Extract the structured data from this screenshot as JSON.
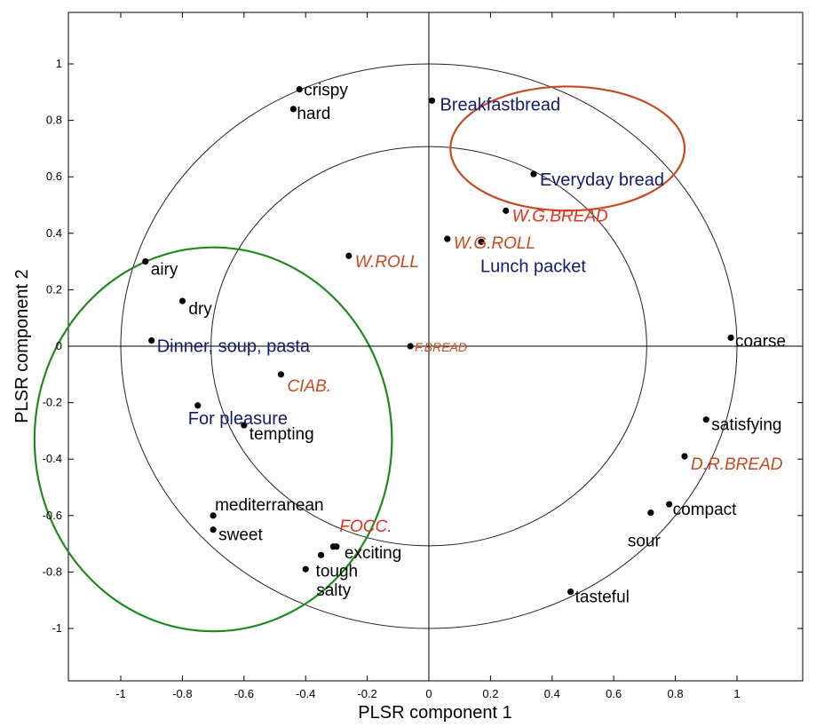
{
  "chart_data": {
    "type": "scatter",
    "title": "",
    "xlabel": "PLSR component 1",
    "ylabel": "PLSR component 2",
    "xlim": [
      -1.2,
      1.2
    ],
    "ylim": [
      -1.2,
      1.2
    ],
    "xticks": [
      "-1",
      "-0.8",
      "-0.6",
      "-0.4",
      "-0.2",
      "0",
      "0.2",
      "0.4",
      "0.6",
      "0.8",
      "1"
    ],
    "yticks": [
      "1",
      "0.8",
      "0.6",
      "0.4",
      "0.2",
      "0",
      "-0.2",
      "-0.4",
      "-0.6",
      "-0.8",
      "-1"
    ],
    "grid": false,
    "reference_circles_radius": [
      0.707,
      1.0
    ],
    "highlight_ellipses": [
      {
        "cx": 0.45,
        "cy": 0.7,
        "rx": 0.38,
        "ry": 0.22,
        "color": "#c8491f"
      },
      {
        "cx": -0.7,
        "cy": -0.33,
        "rx": 0.58,
        "ry": 0.68,
        "color": "#1e8a1e"
      }
    ],
    "points": [
      {
        "label": "crispy",
        "x": -0.42,
        "y": 0.91,
        "color": "#000000",
        "group": "attribute"
      },
      {
        "label": "hard",
        "x": -0.44,
        "y": 0.84,
        "color": "#000000",
        "group": "attribute"
      },
      {
        "label": "airy",
        "x": -0.92,
        "y": 0.3,
        "color": "#000000",
        "group": "attribute"
      },
      {
        "label": "dry",
        "x": -0.8,
        "y": 0.16,
        "color": "#000000",
        "group": "attribute"
      },
      {
        "label": "tempting",
        "x": -0.6,
        "y": -0.28,
        "color": "#000000",
        "group": "attribute"
      },
      {
        "label": "mediterranean",
        "x": -0.7,
        "y": -0.6,
        "color": "#000000",
        "group": "attribute"
      },
      {
        "label": "sweet",
        "x": -0.7,
        "y": -0.65,
        "color": "#000000",
        "group": "attribute"
      },
      {
        "label": "exciting",
        "x": -0.3,
        "y": -0.71,
        "color": "#000000",
        "group": "attribute"
      },
      {
        "label": "tough",
        "x": -0.35,
        "y": -0.74,
        "color": "#000000",
        "group": "attribute"
      },
      {
        "label": "salty",
        "x": -0.4,
        "y": -0.79,
        "color": "#000000",
        "group": "attribute"
      },
      {
        "label": "coarse",
        "x": 0.98,
        "y": 0.03,
        "color": "#000000",
        "group": "attribute"
      },
      {
        "label": "satisfying",
        "x": 0.9,
        "y": -0.26,
        "color": "#000000",
        "group": "attribute"
      },
      {
        "label": "compact",
        "x": 0.78,
        "y": -0.56,
        "color": "#000000",
        "group": "attribute"
      },
      {
        "label": "sour",
        "x": 0.72,
        "y": -0.59,
        "color": "#000000",
        "group": "attribute"
      },
      {
        "label": "tasteful",
        "x": 0.46,
        "y": -0.87,
        "color": "#000000",
        "group": "attribute"
      },
      {
        "label": "Breakfastbread",
        "x": 0.01,
        "y": 0.87,
        "color": "#141a6e",
        "group": "occasion"
      },
      {
        "label": "Everyday bread",
        "x": 0.34,
        "y": 0.61,
        "color": "#141a6e",
        "group": "occasion"
      },
      {
        "label": "Lunch packet",
        "x": 0.17,
        "y": 0.37,
        "color": "#141a6e",
        "group": "occasion"
      },
      {
        "label": "Dinner, soup, pasta",
        "x": -0.9,
        "y": 0.02,
        "color": "#141a6e",
        "group": "occasion"
      },
      {
        "label": "For pleasure",
        "x": -0.75,
        "y": -0.21,
        "color": "#141a6e",
        "group": "occasion"
      },
      {
        "label": "W.G.BREAD",
        "x": 0.25,
        "y": 0.48,
        "color": "#e0321e",
        "group": "product"
      },
      {
        "label": "W.G.ROLL",
        "x": 0.06,
        "y": 0.38,
        "color": "#c8491f",
        "group": "product"
      },
      {
        "label": "W.ROLL",
        "x": -0.26,
        "y": 0.32,
        "color": "#c8491f",
        "group": "product"
      },
      {
        "label": "F.BREAD",
        "x": -0.06,
        "y": 0.0,
        "color": "#c8491f",
        "group": "product"
      },
      {
        "label": "CIAB.",
        "x": -0.48,
        "y": -0.1,
        "color": "#c8491f",
        "group": "product"
      },
      {
        "label": "D.R.BREAD",
        "x": 0.83,
        "y": -0.39,
        "color": "#c8491f",
        "group": "product"
      },
      {
        "label": "FOCC.",
        "x": -0.31,
        "y": -0.71,
        "color": "#e0321e",
        "group": "product"
      }
    ]
  }
}
